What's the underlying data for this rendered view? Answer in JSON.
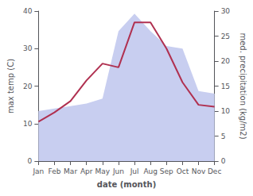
{
  "chart_data": {
    "type": "line",
    "categories": [
      "Jan",
      "Feb",
      "Mar",
      "Apr",
      "May",
      "Jun",
      "Jul",
      "Aug",
      "Sep",
      "Oct",
      "Nov",
      "Dec"
    ],
    "xlabel": "date (month)",
    "ylabel": "max temp (C)",
    "y2label": "med. precipitation (kg/m2)",
    "series": [
      {
        "type": "area",
        "color": "#c8cef0",
        "axis": "y2",
        "values": [
          10.0,
          10.5,
          11.0,
          11.5,
          12.5,
          26.0,
          29.5,
          26.0,
          23.0,
          22.5,
          14.0,
          13.5
        ]
      },
      {
        "type": "line",
        "color": "#b03050",
        "values": [
          10.5,
          13.0,
          16.0,
          21.5,
          26.0,
          25.0,
          37.0,
          37.0,
          30.0,
          21.0,
          15.0,
          14.5
        ]
      }
    ],
    "ylim": [
      0,
      40
    ],
    "yticks": [
      0,
      10,
      20,
      30,
      40
    ],
    "y2lim": [
      0,
      30
    ],
    "y2ticks": [
      0,
      5,
      10,
      15,
      20,
      25,
      30
    ],
    "grid": false
  }
}
